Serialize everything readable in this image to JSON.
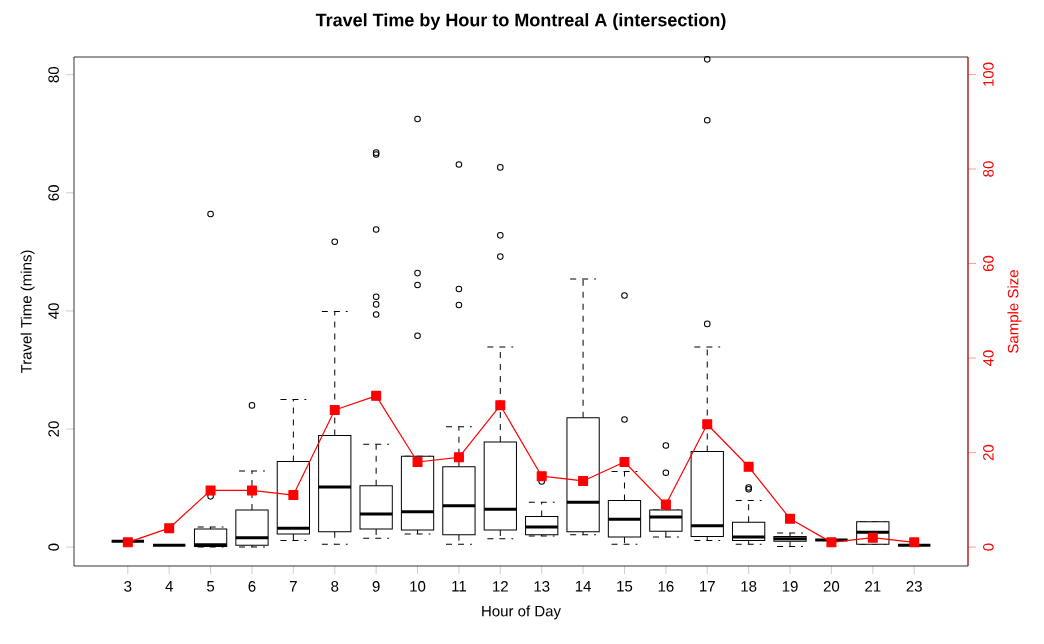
{
  "chart_data": {
    "type": "box",
    "title": "Travel Time by Hour to Montreal A (intersection)",
    "xlabel": "Hour of Day",
    "ylabel": "Travel Time (mins)",
    "y2label": "Sample Size",
    "categories": [
      "3",
      "4",
      "5",
      "6",
      "7",
      "8",
      "9",
      "10",
      "11",
      "12",
      "13",
      "14",
      "15",
      "16",
      "17",
      "18",
      "19",
      "20",
      "21",
      "23"
    ],
    "ylim": [
      -3.2,
      83
    ],
    "yticks": [
      0,
      20,
      40,
      60,
      80
    ],
    "y2lim": [
      -4,
      103.7
    ],
    "y2ticks": [
      0,
      20,
      40,
      60,
      80,
      100
    ],
    "marker": "square",
    "color": "#000000",
    "boxes": [
      {
        "low": 1,
        "q1": 1,
        "median": 1,
        "q3": 1,
        "high": 1
      },
      {
        "low": 0.3,
        "q1": 0.3,
        "median": 0.3,
        "q3": 0.3,
        "high": 0.3
      },
      {
        "low": 0,
        "q1": 0.1,
        "median": 0.4,
        "q3": 3.05,
        "high": 3.4,
        "outliers": [
          56.4,
          8.6
        ]
      },
      {
        "low": 0,
        "q1": 0.3,
        "median": 1.6,
        "q3": 6.3,
        "high": 12.9,
        "outliers": [
          24.0
        ]
      },
      {
        "low": 1.1,
        "q1": 2.2,
        "median": 3.2,
        "q3": 14.5,
        "high": 25.0
      },
      {
        "low": 0.5,
        "q1": 2.6,
        "median": 10.2,
        "q3": 18.9,
        "high": 39.9,
        "outliers": [
          51.7
        ]
      },
      {
        "low": 1.5,
        "q1": 3.05,
        "median": 5.6,
        "q3": 10.4,
        "high": 17.4,
        "outliers": [
          66.8,
          66.5,
          53.8,
          42.4,
          41.1,
          39.4
        ]
      },
      {
        "low": 2.2,
        "q1": 2.9,
        "median": 6.0,
        "q3": 15.4,
        "high": 15.4,
        "outliers": [
          72.5,
          46.4,
          44.4,
          35.8
        ]
      },
      {
        "low": 0.5,
        "q1": 2.1,
        "median": 7.0,
        "q3": 13.6,
        "high": 20.4,
        "outliers": [
          64.8,
          43.7,
          41.0
        ]
      },
      {
        "low": 1.4,
        "q1": 2.9,
        "median": 6.4,
        "q3": 17.8,
        "high": 33.9,
        "outliers": [
          64.3,
          52.8,
          49.2
        ]
      },
      {
        "low": 1.9,
        "q1": 2.1,
        "median": 3.4,
        "q3": 5.2,
        "high": 7.6,
        "outliers": [
          11.1
        ]
      },
      {
        "low": 2.1,
        "q1": 2.6,
        "median": 7.6,
        "q3": 21.9,
        "high": 45.4
      },
      {
        "low": 0.5,
        "q1": 1.7,
        "median": 4.7,
        "q3": 7.9,
        "high": 12.8,
        "outliers": [
          42.6,
          21.6
        ]
      },
      {
        "low": 1.7,
        "q1": 2.7,
        "median": 5.1,
        "q3": 6.3,
        "high": 6.3,
        "outliers": [
          17.2,
          12.6
        ]
      },
      {
        "low": 1.1,
        "q1": 1.8,
        "median": 3.6,
        "q3": 16.2,
        "high": 33.9,
        "outliers": [
          82.6,
          72.3,
          37.8
        ]
      },
      {
        "low": 0.5,
        "q1": 1.1,
        "median": 1.7,
        "q3": 4.2,
        "high": 7.9,
        "outliers": [
          10.1,
          9.8
        ]
      },
      {
        "low": 0.1,
        "q1": 1.0,
        "median": 1.4,
        "q3": 1.8,
        "high": 2.4
      },
      {
        "low": 1.2,
        "q1": 1.2,
        "median": 1.2,
        "q3": 1.2,
        "high": 1.2
      },
      {
        "low": 0.5,
        "q1": 0.5,
        "median": 2.5,
        "q3": 4.3,
        "high": 4.3
      },
      {
        "low": 0.3,
        "q1": 0.3,
        "median": 0.3,
        "q3": 0.3,
        "high": 0.3
      }
    ],
    "series": [
      {
        "type": "line",
        "axis": "y2",
        "color": "#ff0000",
        "values": [
          1,
          4,
          12,
          12,
          11,
          29,
          32,
          18,
          19,
          30,
          15,
          14,
          18,
          9,
          26,
          17,
          6,
          1,
          2,
          1
        ]
      }
    ]
  }
}
